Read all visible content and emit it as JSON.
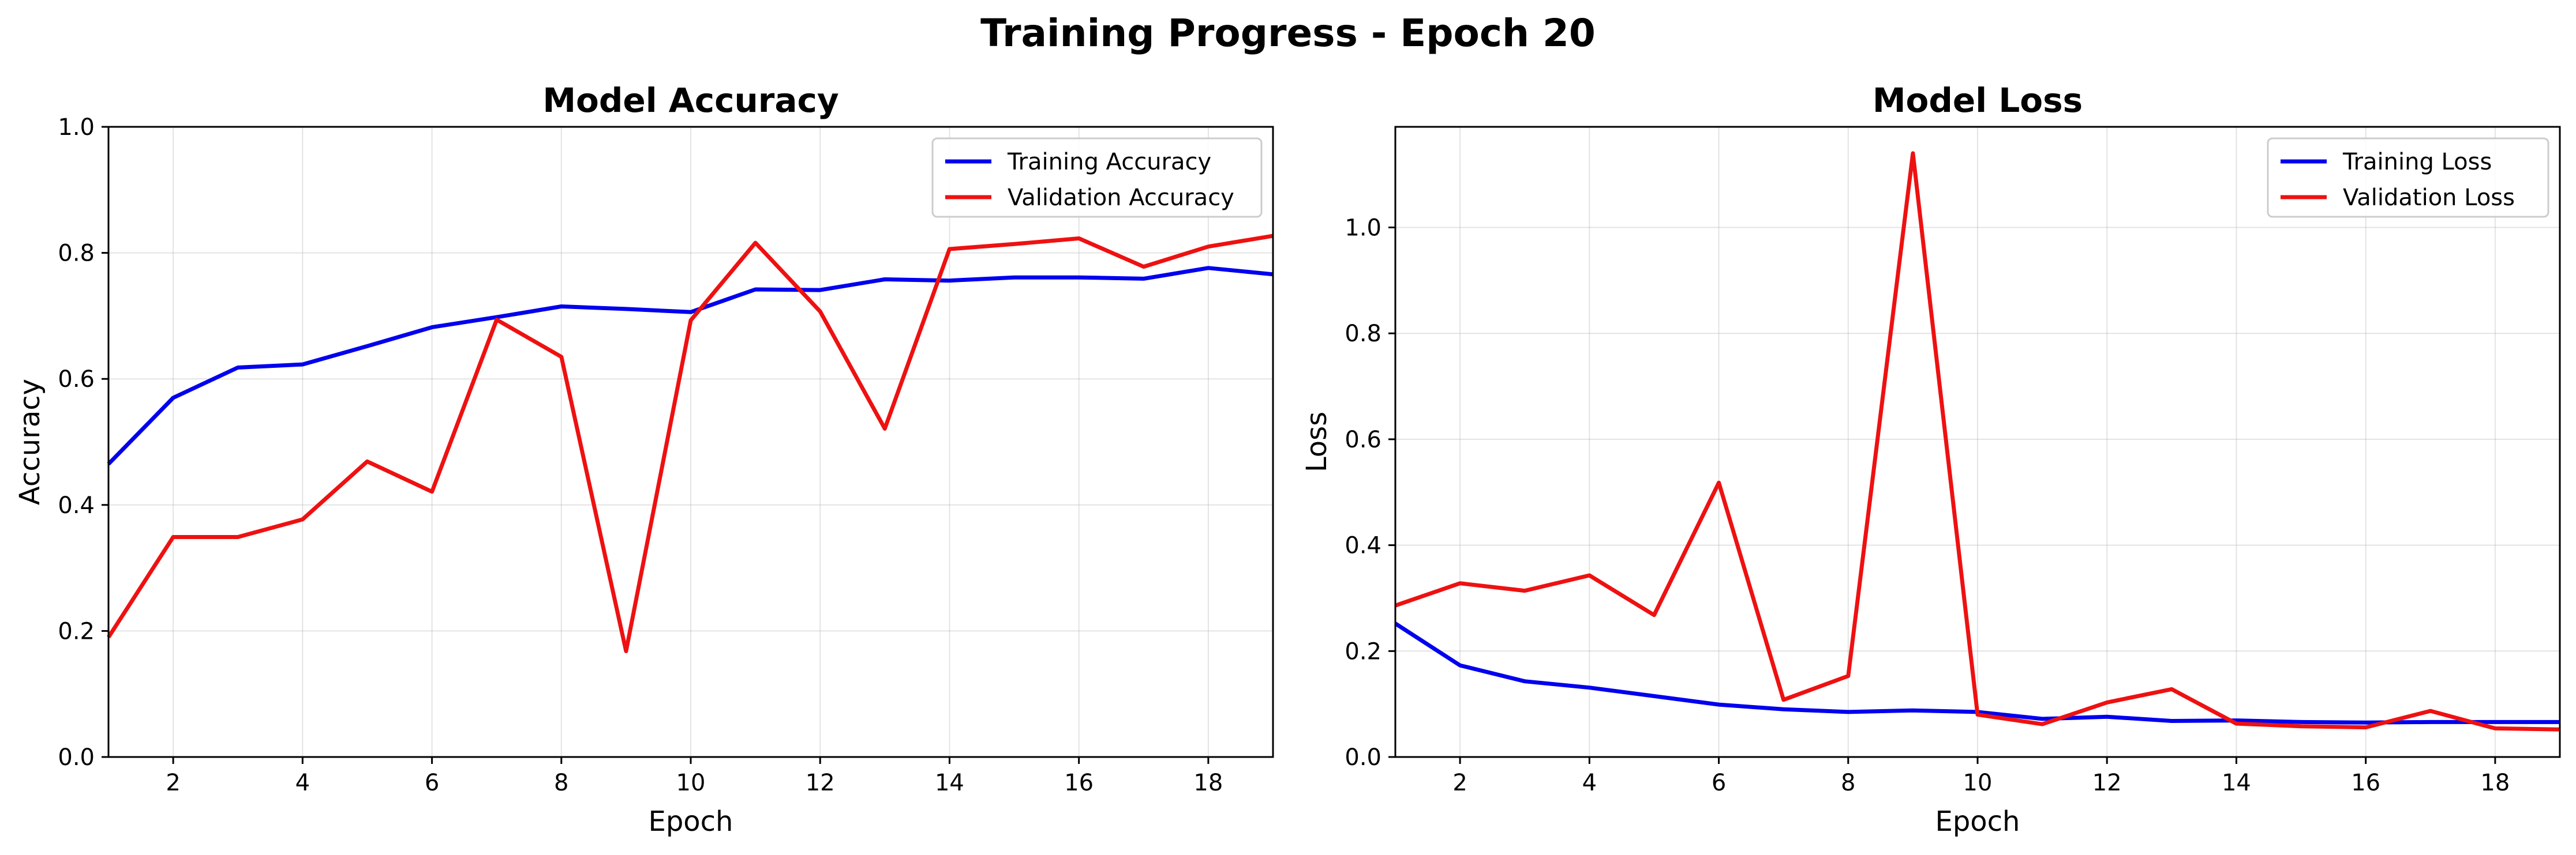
{
  "figure": {
    "title": "Training Progress - Epoch 20"
  },
  "colors": {
    "training": "#0000ee",
    "validation": "#ee1111"
  },
  "chart_data": [
    {
      "type": "line",
      "title": "Model Accuracy",
      "xlabel": "Epoch",
      "ylabel": "Accuracy",
      "xlim": [
        1,
        19
      ],
      "ylim": [
        0,
        1.0
      ],
      "xticks": [
        2,
        4,
        6,
        8,
        10,
        12,
        14,
        16,
        18
      ],
      "yticks": [
        0.0,
        0.2,
        0.4,
        0.6,
        0.8,
        1.0
      ],
      "xtick_labels": [
        "2",
        "4",
        "6",
        "8",
        "10",
        "12",
        "14",
        "16",
        "18"
      ],
      "ytick_labels": [
        "0.0",
        "0.2",
        "0.4",
        "0.6",
        "0.8",
        "1.0"
      ],
      "grid": true,
      "legend": "top-right",
      "x": [
        1,
        2,
        3,
        4,
        5,
        6,
        7,
        8,
        9,
        10,
        11,
        12,
        13,
        14,
        15,
        16,
        17,
        18,
        19
      ],
      "series": [
        {
          "name": "Training Accuracy",
          "color": "#0000ee",
          "values": [
            0.465,
            0.57,
            0.618,
            0.623,
            0.652,
            0.682,
            0.698,
            0.715,
            0.711,
            0.706,
            0.742,
            0.741,
            0.758,
            0.756,
            0.761,
            0.761,
            0.759,
            0.776,
            0.766
          ]
        },
        {
          "name": "Validation Accuracy",
          "color": "#ee1111",
          "values": [
            0.19,
            0.349,
            0.349,
            0.377,
            0.469,
            0.421,
            0.694,
            0.635,
            0.168,
            0.693,
            0.816,
            0.707,
            0.521,
            0.806,
            0.814,
            0.823,
            0.778,
            0.81,
            0.827
          ]
        }
      ]
    },
    {
      "type": "line",
      "title": "Model Loss",
      "xlabel": "Epoch",
      "ylabel": "Loss",
      "xlim": [
        1,
        19
      ],
      "ylim": [
        0,
        1.19
      ],
      "xticks": [
        2,
        4,
        6,
        8,
        10,
        12,
        14,
        16,
        18
      ],
      "yticks": [
        0.0,
        0.2,
        0.4,
        0.6,
        0.8,
        1.0
      ],
      "xtick_labels": [
        "2",
        "4",
        "6",
        "8",
        "10",
        "12",
        "14",
        "16",
        "18"
      ],
      "ytick_labels": [
        "0.0",
        "0.2",
        "0.4",
        "0.6",
        "0.8",
        "1.0"
      ],
      "grid": true,
      "legend": "top-right",
      "x": [
        1,
        2,
        3,
        4,
        5,
        6,
        7,
        8,
        9,
        10,
        11,
        12,
        13,
        14,
        15,
        16,
        17,
        18,
        19
      ],
      "series": [
        {
          "name": "Training Loss",
          "color": "#0000ee",
          "values": [
            0.252,
            0.173,
            0.143,
            0.131,
            0.115,
            0.099,
            0.09,
            0.085,
            0.088,
            0.085,
            0.072,
            0.076,
            0.068,
            0.069,
            0.066,
            0.065,
            0.066,
            0.066,
            0.066
          ]
        },
        {
          "name": "Validation Loss",
          "color": "#ee1111",
          "values": [
            0.286,
            0.328,
            0.314,
            0.343,
            0.268,
            0.518,
            0.108,
            0.153,
            1.14,
            0.08,
            0.062,
            0.103,
            0.128,
            0.063,
            0.058,
            0.056,
            0.087,
            0.054,
            0.052
          ]
        }
      ]
    }
  ]
}
